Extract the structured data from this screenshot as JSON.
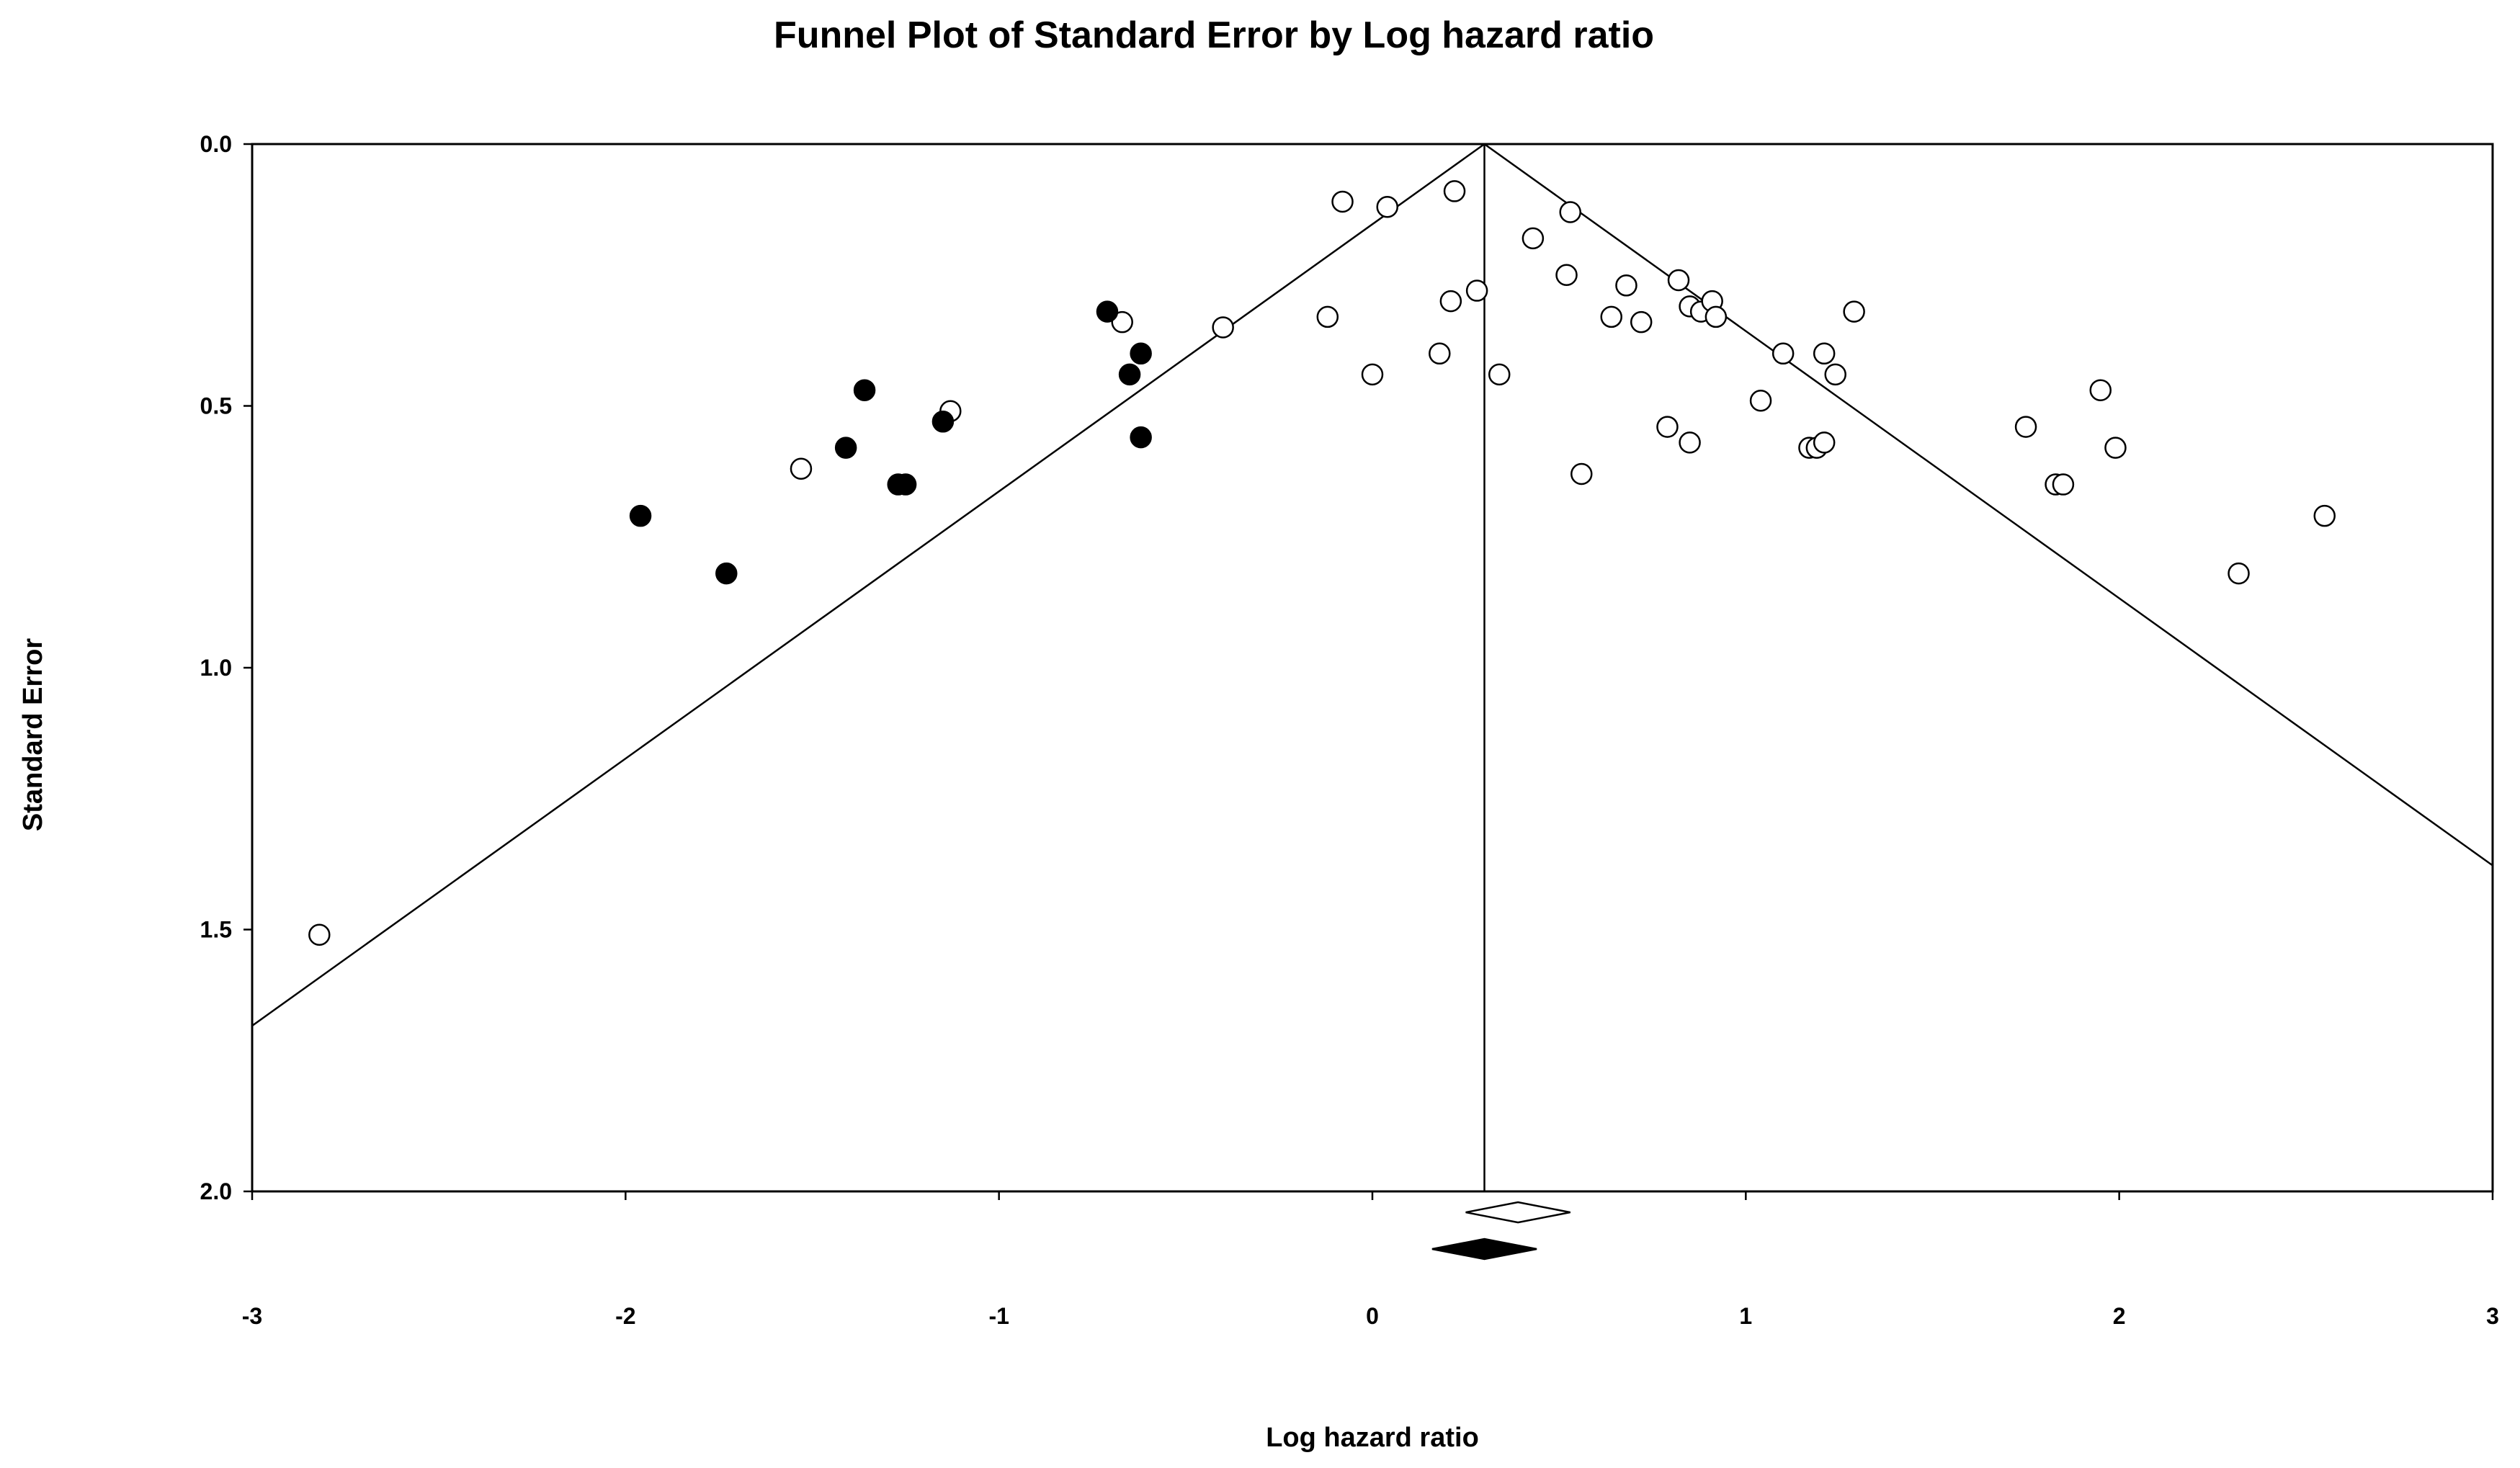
{
  "chart_data": {
    "type": "scatter",
    "title": "Funnel Plot of Standard Error by Log hazard ratio",
    "xlabel": "Log hazard ratio",
    "ylabel": "Standard Error",
    "xlim": [
      -3,
      3
    ],
    "ylim": [
      0,
      2
    ],
    "y_inverted": true,
    "xticks": [
      -3,
      -2,
      -1,
      0,
      1,
      2,
      3
    ],
    "yticks": [
      0.0,
      0.5,
      1.0,
      1.5,
      2.0
    ],
    "yticks_text": [
      "0.0",
      "0.5",
      "1.0",
      "1.5",
      "2.0"
    ],
    "grid": false,
    "legend": "none",
    "funnel": {
      "apex_x": 0.3,
      "apex_se": 0.0,
      "slope_z": 1.96
    },
    "summary_diamonds": [
      {
        "kind": "observed",
        "center_x": 0.39,
        "half_width": 0.14,
        "y": 2.04,
        "filled": false
      },
      {
        "kind": "adjusted",
        "center_x": 0.3,
        "half_width": 0.14,
        "y": 2.11,
        "filled": true
      }
    ],
    "series": [
      {
        "kind": "observed",
        "marker": "open-circle",
        "color": "#000000",
        "points": [
          [
            -0.08,
            0.11
          ],
          [
            0.04,
            0.12
          ],
          [
            0.22,
            0.09
          ],
          [
            0.53,
            0.13
          ],
          [
            0.43,
            0.18
          ],
          [
            0.52,
            0.25
          ],
          [
            0.68,
            0.27
          ],
          [
            0.82,
            0.26
          ],
          [
            0.28,
            0.28
          ],
          [
            0.21,
            0.3
          ],
          [
            -0.67,
            0.34
          ],
          [
            -0.4,
            0.35
          ],
          [
            -0.12,
            0.33
          ],
          [
            0.64,
            0.33
          ],
          [
            0.72,
            0.34
          ],
          [
            0.85,
            0.31
          ],
          [
            0.88,
            0.32
          ],
          [
            0.91,
            0.3
          ],
          [
            0.92,
            0.33
          ],
          [
            1.29,
            0.32
          ],
          [
            1.1,
            0.4
          ],
          [
            1.21,
            0.4
          ],
          [
            0.18,
            0.4
          ],
          [
            0.34,
            0.44
          ],
          [
            0.0,
            0.44
          ],
          [
            1.24,
            0.44
          ],
          [
            1.04,
            0.49
          ],
          [
            -1.13,
            0.51
          ],
          [
            0.79,
            0.54
          ],
          [
            0.85,
            0.57
          ],
          [
            1.17,
            0.58
          ],
          [
            1.19,
            0.58
          ],
          [
            1.21,
            0.57
          ],
          [
            0.56,
            0.63
          ],
          [
            -1.53,
            0.62
          ],
          [
            1.75,
            0.54
          ],
          [
            1.95,
            0.47
          ],
          [
            1.99,
            0.58
          ],
          [
            1.83,
            0.65
          ],
          [
            1.85,
            0.65
          ],
          [
            2.55,
            0.71
          ],
          [
            2.32,
            0.82
          ],
          [
            -2.82,
            1.51
          ]
        ]
      },
      {
        "kind": "imputed",
        "marker": "filled-circle",
        "color": "#000000",
        "points": [
          [
            -0.71,
            0.32
          ],
          [
            -0.62,
            0.4
          ],
          [
            -0.65,
            0.44
          ],
          [
            -0.62,
            0.56
          ],
          [
            -1.36,
            0.47
          ],
          [
            -1.15,
            0.53
          ],
          [
            -1.41,
            0.58
          ],
          [
            -1.27,
            0.65
          ],
          [
            -1.25,
            0.65
          ],
          [
            -1.96,
            0.71
          ],
          [
            -1.73,
            0.82
          ]
        ]
      }
    ]
  }
}
